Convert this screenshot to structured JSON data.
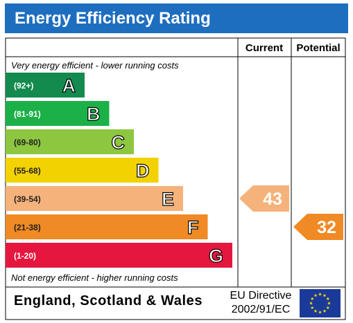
{
  "header": {
    "title": "Energy Efficiency Rating"
  },
  "columns": {
    "current": "Current",
    "potential": "Potential"
  },
  "notes": {
    "top": "Very energy efficient - lower running costs",
    "bottom": "Not energy efficient - higher running costs"
  },
  "footer": {
    "region": "England, Scotland & Wales",
    "directive_line1": "EU Directive",
    "directive_line2": "2002/91/EC",
    "flag_icon": "eu-flag-icon"
  },
  "colors": {
    "title_bg": "#1e6ec0",
    "current_arrow": "#f5b27a",
    "potential_arrow": "#f08a24"
  },
  "chart_data": {
    "type": "bar",
    "bands": [
      {
        "range": "(92+)",
        "letter": "A",
        "color": "#138a4e"
      },
      {
        "range": "(81-91)",
        "letter": "B",
        "color": "#1bb148"
      },
      {
        "range": "(69-80)",
        "letter": "C",
        "color": "#8dc63f"
      },
      {
        "range": "(55-68)",
        "letter": "D",
        "color": "#f2d200"
      },
      {
        "range": "(39-54)",
        "letter": "E",
        "color": "#f5b27a"
      },
      {
        "range": "(21-38)",
        "letter": "F",
        "color": "#f08a24"
      },
      {
        "range": "(1-20)",
        "letter": "G",
        "color": "#e5173f"
      }
    ],
    "current": {
      "value": 43,
      "band": "E"
    },
    "potential": {
      "value": 32,
      "band": "F"
    }
  }
}
